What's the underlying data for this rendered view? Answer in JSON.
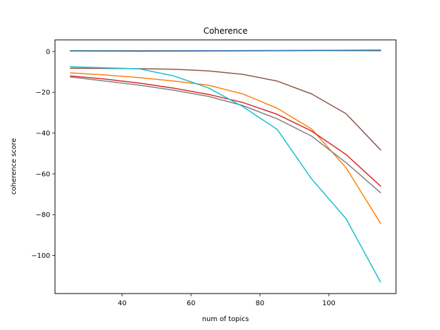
{
  "chart_data": {
    "type": "line",
    "title": "Coherence",
    "xlabel": "num of topics",
    "ylabel": "coherence score",
    "x": [
      25,
      35,
      45,
      55,
      65,
      75,
      85,
      95,
      105,
      115
    ],
    "xlim": [
      20.5,
      119.5
    ],
    "ylim": [
      -118.7,
      5.7
    ],
    "xticks": [
      40,
      60,
      80,
      100
    ],
    "xtick_labels": [
      "40",
      "60",
      "80",
      "100"
    ],
    "yticks": [
      0,
      -20,
      -40,
      -60,
      -80,
      -100
    ],
    "ytick_labels": [
      "0",
      "−20",
      "−40",
      "−60",
      "−80",
      "−100"
    ],
    "grid": false,
    "legend": "none",
    "series": [
      {
        "color": "#ff7f0e",
        "values": [
          -10.5,
          -11.5,
          -12.8,
          -14.5,
          -16.5,
          -20.8,
          -27.8,
          -38.0,
          -57.0,
          -84.2
        ]
      },
      {
        "color": "#d62728",
        "values": [
          -12.0,
          -13.5,
          -15.5,
          -18.0,
          -21.0,
          -25.0,
          -30.8,
          -39.0,
          -50.5,
          -66.0
        ]
      },
      {
        "color": "#8c564b",
        "values": [
          -8.2,
          -8.3,
          -8.4,
          -8.7,
          -9.5,
          -11.2,
          -14.5,
          -20.8,
          -30.5,
          -48.2
        ]
      },
      {
        "color": "#7f7f7f",
        "values": [
          -12.5,
          -14.5,
          -16.5,
          -19.0,
          -22.0,
          -26.5,
          -33.0,
          -41.5,
          -54.5,
          -69.2
        ]
      },
      {
        "color": "#17becf",
        "values": [
          -7.5,
          -8.0,
          -8.5,
          -12.0,
          -17.8,
          -27.0,
          -38.2,
          -62.5,
          -82.0,
          -113.0
        ]
      },
      {
        "color": "#2ca02c",
        "values": [
          0.4,
          0.4,
          0.4,
          0.4,
          0.4,
          0.45,
          0.45,
          0.4,
          0.35,
          0.3
        ]
      },
      {
        "color": "#bcbd22",
        "values": [
          0.35,
          0.35,
          0.35,
          0.4,
          0.4,
          0.4,
          0.4,
          0.4,
          0.4,
          0.4
        ]
      },
      {
        "color": "#9467bd",
        "values": [
          0.3,
          0.3,
          0.3,
          0.35,
          0.35,
          0.4,
          0.45,
          0.5,
          0.55,
          0.6
        ]
      },
      {
        "color": "#1f77b4",
        "values": [
          0.3,
          0.2,
          0.15,
          0.2,
          0.25,
          0.3,
          0.4,
          0.5,
          0.6,
          0.7
        ]
      }
    ]
  }
}
